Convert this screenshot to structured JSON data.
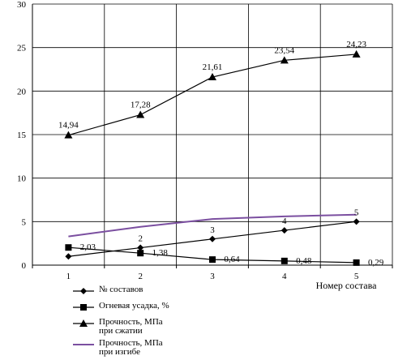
{
  "chart_data": {
    "type": "line",
    "x": [
      1,
      2,
      3,
      4,
      5
    ],
    "xlabel": "Номер состава",
    "ylabel": "",
    "title": "",
    "ylim": [
      0,
      30
    ],
    "yticks": [
      0,
      5,
      10,
      15,
      20,
      25,
      30
    ],
    "grid": true,
    "legend_position": "bottom",
    "series": [
      {
        "name": "№ составов",
        "values": [
          1,
          2,
          3,
          4,
          5
        ],
        "labels": [
          "",
          "2",
          "3",
          "4",
          "5"
        ],
        "color": "#000000",
        "marker": "diamond"
      },
      {
        "name": "Огневая усадка, %",
        "values": [
          2.03,
          1.38,
          0.64,
          0.48,
          0.29
        ],
        "labels": [
          "2,03",
          "1,38",
          "0,64",
          "0,48",
          "0,29"
        ],
        "color": "#000000",
        "marker": "square"
      },
      {
        "name": "Прочность, МПа\nпри сжатии",
        "values": [
          14.94,
          17.28,
          21.61,
          23.54,
          24.23
        ],
        "labels": [
          "14,94",
          "17,28",
          "21,61",
          "23,54",
          "24,23"
        ],
        "color": "#000000",
        "marker": "triangle"
      },
      {
        "name": "Прочность, МПа\nпри изгибе",
        "values": [
          3.3,
          4.4,
          5.3,
          5.6,
          5.8
        ],
        "labels": [
          "",
          "",
          "",
          "",
          ""
        ],
        "color": "#7b4fa0",
        "marker": "none"
      }
    ]
  }
}
